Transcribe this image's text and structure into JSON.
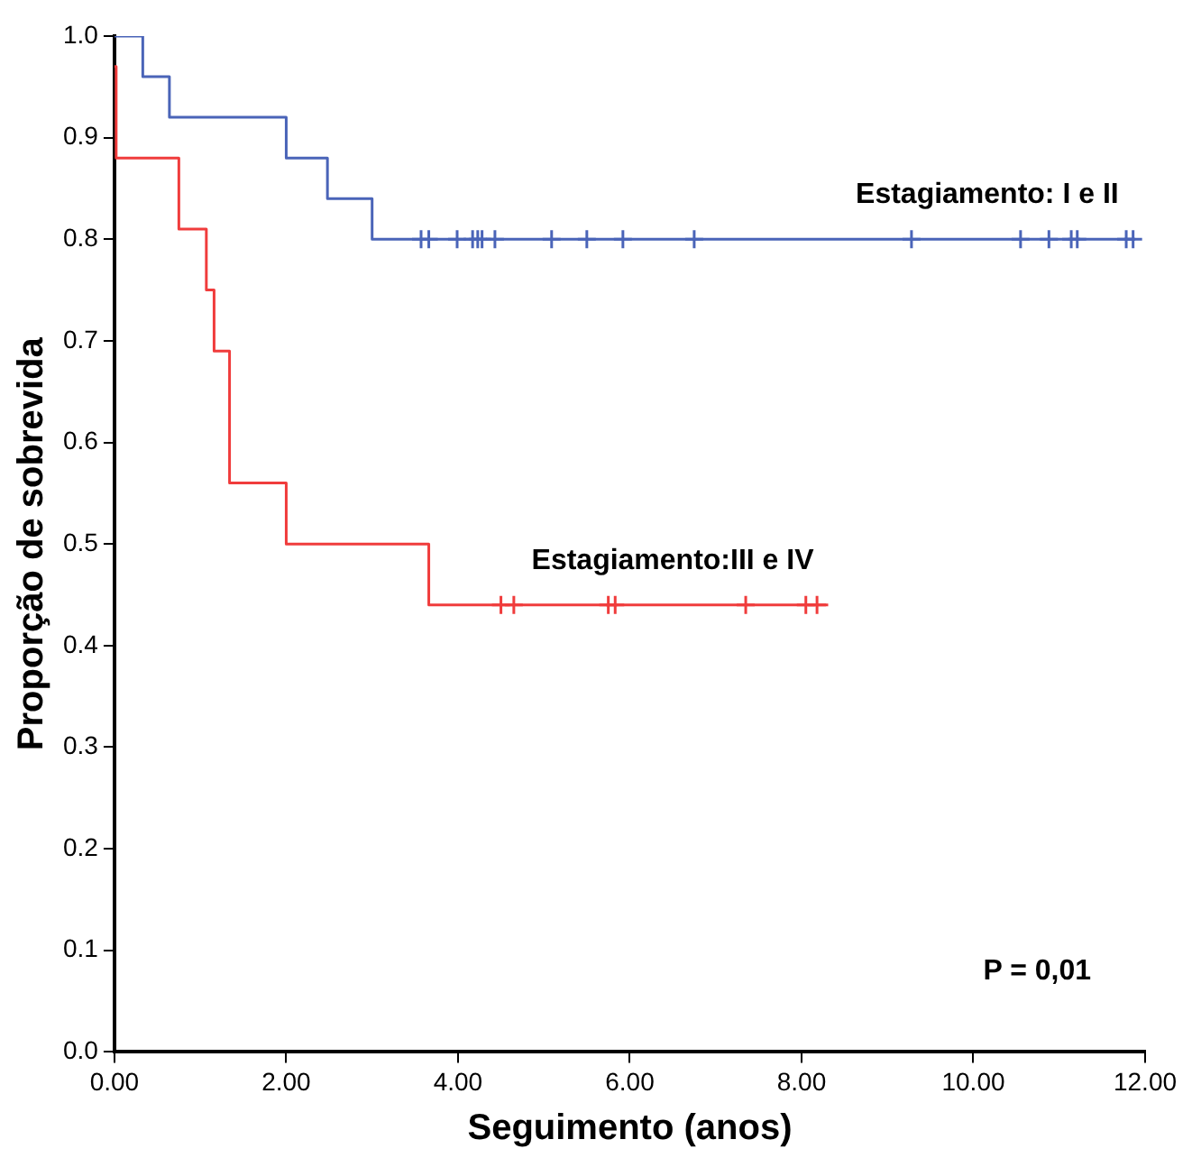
{
  "chart_data": {
    "type": "step",
    "xlabel": "Seguimento (anos)",
    "ylabel": "Proporção de sobrevida",
    "xlim": [
      0,
      12
    ],
    "xticks": [
      {
        "value": 0,
        "label": "0.00"
      },
      {
        "value": 2,
        "label": "2.00"
      },
      {
        "value": 4,
        "label": "4.00"
      },
      {
        "value": 6,
        "label": "6.00"
      },
      {
        "value": 8,
        "label": "8.00"
      },
      {
        "value": 10,
        "label": "10.00"
      },
      {
        "value": 12,
        "label": "12.00"
      }
    ],
    "ylim": [
      0,
      1
    ],
    "yticks": [
      {
        "value": 0,
        "label": "0.0"
      },
      {
        "value": 0.1,
        "label": "0.1"
      },
      {
        "value": 0.2,
        "label": "0.2"
      },
      {
        "value": 0.3,
        "label": "0.3"
      },
      {
        "value": 0.4,
        "label": "0.4"
      },
      {
        "value": 0.5,
        "label": "0.5"
      },
      {
        "value": 0.6,
        "label": "0.6"
      },
      {
        "value": 0.7,
        "label": "0.7"
      },
      {
        "value": 0.8,
        "label": "0.8"
      },
      {
        "value": 0.9,
        "label": "0.9"
      },
      {
        "value": 1,
        "label": "1.0"
      }
    ],
    "grid": false,
    "legend": false,
    "series": [
      {
        "name": "Estagiamento: I e II",
        "type": "step",
        "color": "#4a64b8",
        "marker": "none",
        "x": [
          0,
          0.33,
          0.64,
          2.0,
          2.48,
          3.0,
          11.86
        ],
        "values": [
          1,
          0.96,
          0.92,
          0.88,
          0.84,
          0.8,
          0.8
        ]
      },
      {
        "name": "Estagiamento:III e IV",
        "type": "step",
        "color": "#f03c3c",
        "marker": "none",
        "x": [
          0,
          0.02,
          0.75,
          1.07,
          1.16,
          1.34,
          2.0,
          3.66,
          8.31
        ],
        "values": [
          0.97,
          0.88,
          0.81,
          0.75,
          0.69,
          0.56,
          0.5,
          0.44,
          0.44
        ]
      },
      {
        "type": "scatter",
        "color": "#4a64b8",
        "marker": "cross",
        "x": [
          3.57,
          3.66,
          3.99,
          4.17,
          4.23,
          4.28,
          4.43,
          5.09,
          5.5,
          5.92,
          6.75,
          9.28,
          10.55,
          10.88,
          11.14,
          11.21,
          11.78,
          11.86
        ],
        "values": [
          0.8,
          0.8,
          0.8,
          0.8,
          0.8,
          0.8,
          0.8,
          0.8,
          0.8,
          0.8,
          0.8,
          0.8,
          0.8,
          0.8,
          0.8,
          0.8,
          0.8,
          0.8
        ]
      },
      {
        "type": "scatter",
        "color": "#f03c3c",
        "marker": "cross",
        "x": [
          4.5,
          4.65,
          5.75,
          5.83,
          7.35,
          8.05,
          8.18
        ],
        "values": [
          0.44,
          0.44,
          0.44,
          0.44,
          0.44,
          0.44,
          0.44
        ]
      }
    ],
    "annotations": [
      "P = 0,01"
    ]
  }
}
